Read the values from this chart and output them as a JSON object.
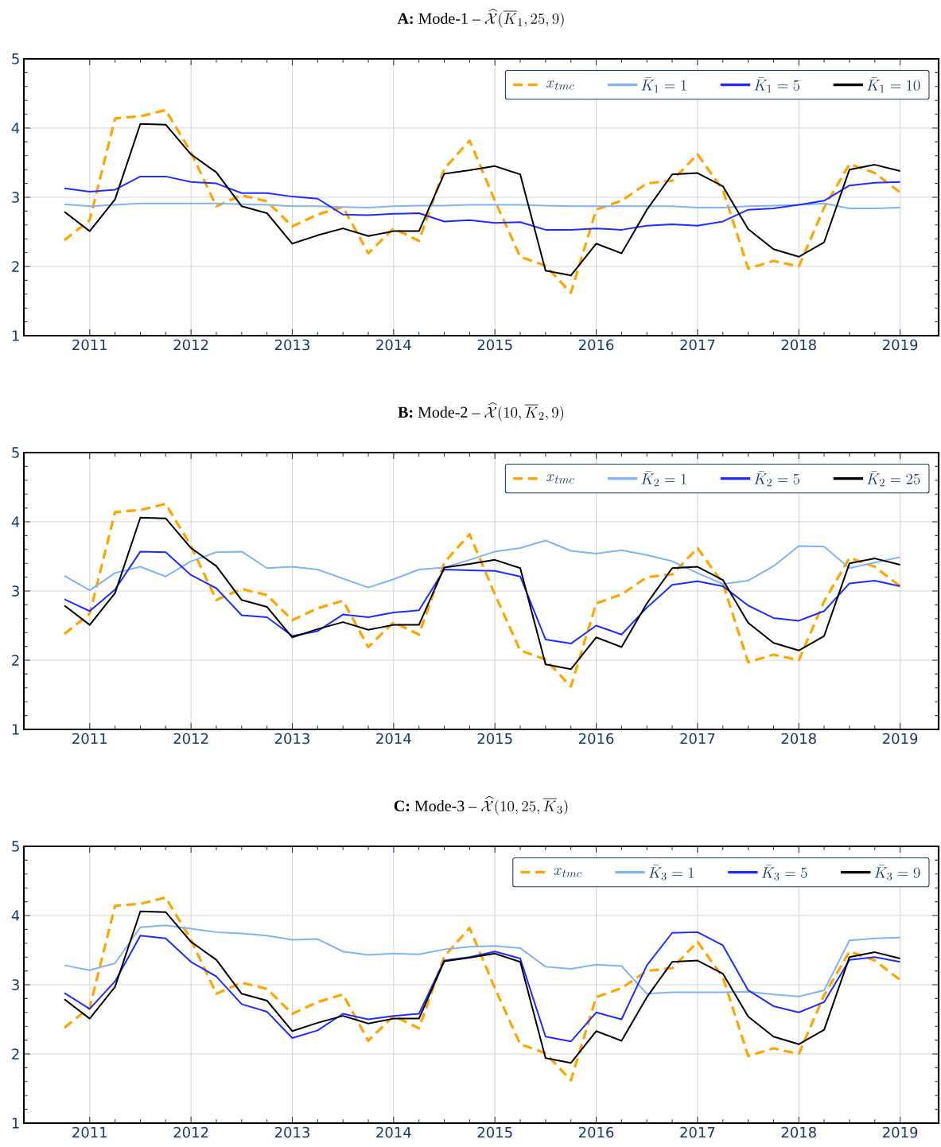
{
  "chart_data": [
    {
      "type": "line",
      "title": "\\textbf{A:}\\ \\text{Mode-1 – }\\widehat{\\mathcal{X}}(\\overline{K}_1, 25, 9)",
      "x": [
        2010.75,
        2011.0,
        2011.25,
        2011.5,
        2011.75,
        2012.0,
        2012.25,
        2012.5,
        2012.75,
        2013.0,
        2013.25,
        2013.5,
        2013.75,
        2014.0,
        2014.25,
        2014.5,
        2014.75,
        2015.0,
        2015.25,
        2015.5,
        2015.75,
        2016.0,
        2016.25,
        2016.5,
        2016.75,
        2017.0,
        2017.25,
        2017.5,
        2017.75,
        2018.0,
        2018.25,
        2018.5,
        2018.75,
        2019.0
      ],
      "xlim": [
        2010.35,
        2019.38
      ],
      "xticks": [
        2011,
        2012,
        2013,
        2014,
        2015,
        2016,
        2017,
        2018,
        2019
      ],
      "ylim": [
        1,
        5
      ],
      "yticks": [
        1,
        2,
        3,
        4,
        5
      ],
      "grid": true,
      "legend": "top right",
      "series": [
        {
          "name": "x_{tmc}",
          "color": "#ffa500",
          "line_style": "dashed",
          "values": [
            2.38,
            2.67,
            4.14,
            4.17,
            4.26,
            3.65,
            2.87,
            3.03,
            2.94,
            2.58,
            2.75,
            2.86,
            2.19,
            2.55,
            2.37,
            3.41,
            3.82,
            2.95,
            2.14,
            2.01,
            1.62,
            2.82,
            2.95,
            3.2,
            3.24,
            3.62,
            3.11,
            1.97,
            2.08,
            2.0,
            2.85,
            3.48,
            3.35,
            3.07
          ]
        },
        {
          "name": "\\bar{K}_1 = 1",
          "color": "#80b3f5",
          "values": [
            2.9,
            2.87,
            2.89,
            2.91,
            2.91,
            2.91,
            2.91,
            2.9,
            2.89,
            2.87,
            2.87,
            2.86,
            2.85,
            2.87,
            2.88,
            2.88,
            2.89,
            2.89,
            2.89,
            2.88,
            2.87,
            2.87,
            2.87,
            2.87,
            2.87,
            2.85,
            2.85,
            2.87,
            2.88,
            2.89,
            2.91,
            2.84,
            2.84,
            2.85
          ]
        },
        {
          "name": "\\bar{K}_1 = 5",
          "color": "#1f2cff",
          "values": [
            3.13,
            3.08,
            3.11,
            3.3,
            3.3,
            3.22,
            3.2,
            3.06,
            3.06,
            3.01,
            2.98,
            2.75,
            2.74,
            2.76,
            2.77,
            2.65,
            2.67,
            2.63,
            2.64,
            2.53,
            2.53,
            2.55,
            2.53,
            2.59,
            2.61,
            2.59,
            2.65,
            2.82,
            2.84,
            2.89,
            2.95,
            3.17,
            3.21,
            3.22
          ]
        },
        {
          "name": "\\bar{K}_1 = 10",
          "color": "#000000",
          "values": [
            2.79,
            2.51,
            2.97,
            4.06,
            4.05,
            3.62,
            3.36,
            2.87,
            2.77,
            2.33,
            2.45,
            2.55,
            2.44,
            2.51,
            2.51,
            3.34,
            3.39,
            3.45,
            3.33,
            1.94,
            1.87,
            2.33,
            2.19,
            2.82,
            3.33,
            3.35,
            3.16,
            2.54,
            2.25,
            2.14,
            2.35,
            3.4,
            3.47,
            3.38
          ]
        }
      ]
    },
    {
      "type": "line",
      "title": "\\textbf{B:}\\ \\text{Mode-2 – }\\widehat{\\mathcal{X}}(10, \\overline{K}_2, 9)",
      "x": [
        2010.75,
        2011.0,
        2011.25,
        2011.5,
        2011.75,
        2012.0,
        2012.25,
        2012.5,
        2012.75,
        2013.0,
        2013.25,
        2013.5,
        2013.75,
        2014.0,
        2014.25,
        2014.5,
        2014.75,
        2015.0,
        2015.25,
        2015.5,
        2015.75,
        2016.0,
        2016.25,
        2016.5,
        2016.75,
        2017.0,
        2017.25,
        2017.5,
        2017.75,
        2018.0,
        2018.25,
        2018.5,
        2018.75,
        2019.0
      ],
      "xlim": [
        2010.35,
        2019.38
      ],
      "xticks": [
        2011,
        2012,
        2013,
        2014,
        2015,
        2016,
        2017,
        2018,
        2019
      ],
      "ylim": [
        1,
        5
      ],
      "yticks": [
        1,
        2,
        3,
        4,
        5
      ],
      "grid": true,
      "legend": "top right",
      "series": [
        {
          "name": "x_{tmc}",
          "color": "#ffa500",
          "line_style": "dashed",
          "values": [
            2.38,
            2.67,
            4.14,
            4.17,
            4.26,
            3.65,
            2.87,
            3.03,
            2.94,
            2.58,
            2.75,
            2.86,
            2.19,
            2.55,
            2.37,
            3.41,
            3.82,
            2.95,
            2.14,
            2.01,
            1.62,
            2.82,
            2.95,
            3.2,
            3.24,
            3.62,
            3.11,
            1.97,
            2.08,
            2.0,
            2.85,
            3.48,
            3.35,
            3.07
          ]
        },
        {
          "name": "\\bar{K}_2 = 1",
          "color": "#80b3f5",
          "values": [
            3.22,
            3.01,
            3.26,
            3.35,
            3.21,
            3.43,
            3.56,
            3.57,
            3.33,
            3.35,
            3.31,
            3.18,
            3.05,
            3.17,
            3.31,
            3.34,
            3.45,
            3.57,
            3.62,
            3.73,
            3.58,
            3.54,
            3.59,
            3.52,
            3.43,
            3.26,
            3.1,
            3.15,
            3.36,
            3.65,
            3.64,
            3.33,
            3.41,
            3.49
          ]
        },
        {
          "name": "\\bar{K}_2 = 5",
          "color": "#1f2cff",
          "values": [
            2.88,
            2.71,
            3.02,
            3.57,
            3.56,
            3.23,
            3.04,
            2.65,
            2.62,
            2.35,
            2.42,
            2.66,
            2.62,
            2.69,
            2.72,
            3.31,
            3.3,
            3.29,
            3.21,
            2.3,
            2.24,
            2.5,
            2.37,
            2.76,
            3.09,
            3.14,
            3.07,
            2.79,
            2.61,
            2.57,
            2.71,
            3.11,
            3.15,
            3.07
          ]
        },
        {
          "name": "\\bar{K}_2 = 25",
          "color": "#000000",
          "values": [
            2.79,
            2.51,
            2.97,
            4.06,
            4.05,
            3.62,
            3.36,
            2.87,
            2.77,
            2.33,
            2.45,
            2.55,
            2.44,
            2.51,
            2.51,
            3.34,
            3.39,
            3.45,
            3.33,
            1.94,
            1.87,
            2.33,
            2.19,
            2.82,
            3.33,
            3.35,
            3.16,
            2.54,
            2.25,
            2.14,
            2.35,
            3.4,
            3.47,
            3.38
          ]
        }
      ]
    },
    {
      "type": "line",
      "title": "\\textbf{C:}\\ \\text{Mode-3 – }\\widehat{\\mathcal{X}}(10, 25, \\overline{K}_3)",
      "x": [
        2010.75,
        2011.0,
        2011.25,
        2011.5,
        2011.75,
        2012.0,
        2012.25,
        2012.5,
        2012.75,
        2013.0,
        2013.25,
        2013.5,
        2013.75,
        2014.0,
        2014.25,
        2014.5,
        2014.75,
        2015.0,
        2015.25,
        2015.5,
        2015.75,
        2016.0,
        2016.25,
        2016.5,
        2016.75,
        2017.0,
        2017.25,
        2017.5,
        2017.75,
        2018.0,
        2018.25,
        2018.5,
        2018.75,
        2019.0
      ],
      "xlim": [
        2010.35,
        2019.38
      ],
      "xticks": [
        2011,
        2012,
        2013,
        2014,
        2015,
        2016,
        2017,
        2018,
        2019
      ],
      "ylim": [
        1,
        5
      ],
      "yticks": [
        1,
        2,
        3,
        4,
        5
      ],
      "grid": true,
      "legend": "top right",
      "series": [
        {
          "name": "x_{tmc}",
          "color": "#ffa500",
          "line_style": "dashed",
          "values": [
            2.38,
            2.67,
            4.14,
            4.17,
            4.26,
            3.65,
            2.87,
            3.03,
            2.94,
            2.58,
            2.75,
            2.86,
            2.19,
            2.55,
            2.37,
            3.41,
            3.82,
            2.95,
            2.14,
            2.01,
            1.62,
            2.82,
            2.95,
            3.2,
            3.24,
            3.62,
            3.11,
            1.97,
            2.08,
            2.0,
            2.85,
            3.48,
            3.35,
            3.07
          ]
        },
        {
          "name": "\\bar{K}_3 = 1",
          "color": "#80b3f5",
          "values": [
            3.28,
            3.21,
            3.31,
            3.83,
            3.86,
            3.81,
            3.76,
            3.74,
            3.71,
            3.65,
            3.66,
            3.48,
            3.43,
            3.45,
            3.44,
            3.51,
            3.55,
            3.56,
            3.53,
            3.26,
            3.23,
            3.29,
            3.27,
            2.87,
            2.89,
            2.89,
            2.89,
            2.9,
            2.86,
            2.83,
            2.92,
            3.64,
            3.67,
            3.68
          ]
        },
        {
          "name": "\\bar{K}_3 = 5",
          "color": "#1f2cff",
          "values": [
            2.88,
            2.65,
            3.05,
            3.71,
            3.67,
            3.33,
            3.12,
            2.72,
            2.61,
            2.23,
            2.34,
            2.58,
            2.5,
            2.55,
            2.58,
            3.35,
            3.4,
            3.48,
            3.38,
            2.25,
            2.18,
            2.6,
            2.5,
            3.28,
            3.75,
            3.76,
            3.57,
            2.92,
            2.69,
            2.6,
            2.75,
            3.36,
            3.4,
            3.33
          ]
        },
        {
          "name": "\\bar{K}_3 = 9",
          "color": "#000000",
          "values": [
            2.79,
            2.51,
            2.97,
            4.06,
            4.05,
            3.62,
            3.36,
            2.87,
            2.77,
            2.33,
            2.45,
            2.55,
            2.44,
            2.51,
            2.51,
            3.34,
            3.39,
            3.45,
            3.33,
            1.94,
            1.87,
            2.33,
            2.19,
            2.82,
            3.33,
            3.35,
            3.16,
            2.54,
            2.25,
            2.14,
            2.35,
            3.4,
            3.47,
            3.38
          ]
        }
      ]
    }
  ]
}
